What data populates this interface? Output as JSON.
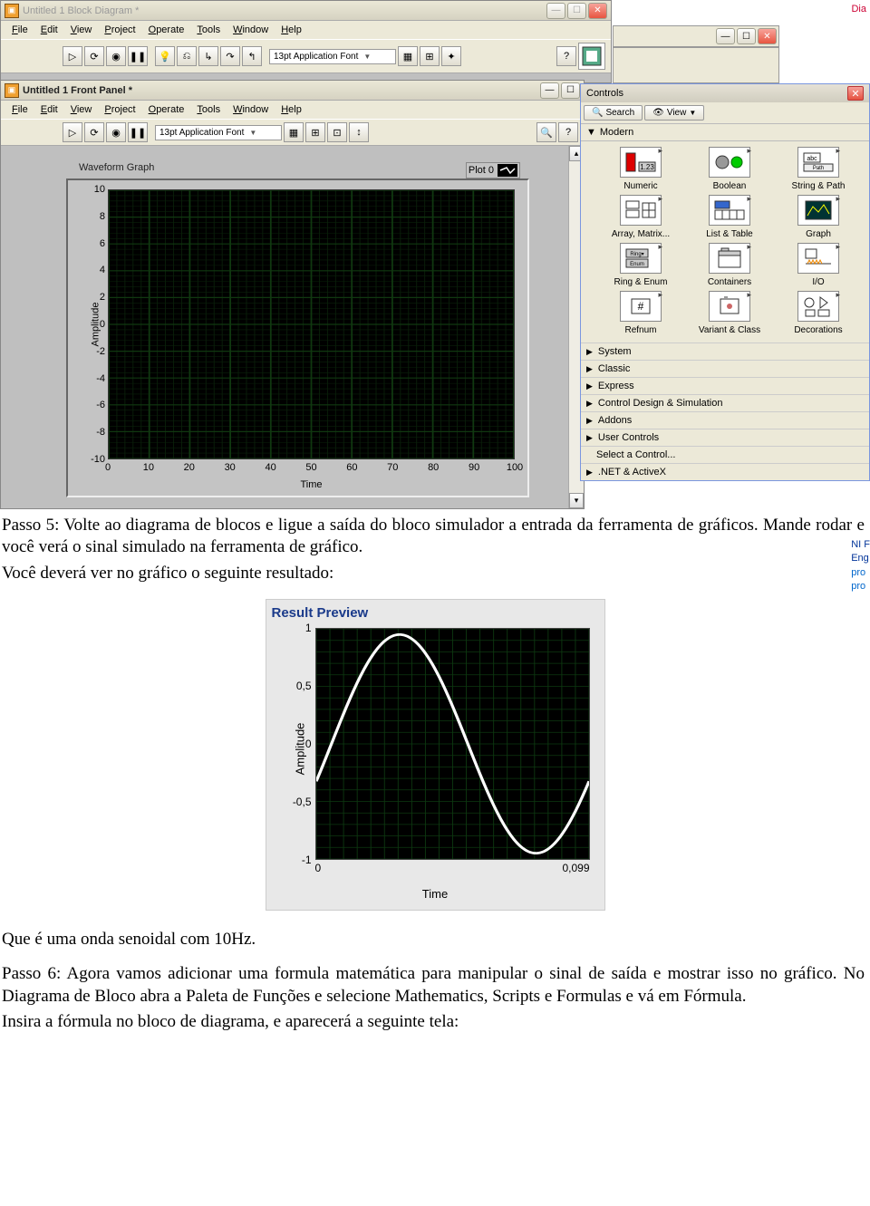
{
  "block_window": {
    "title": "Untitled 1 Block Diagram *",
    "menus": [
      "File",
      "Edit",
      "View",
      "Project",
      "Operate",
      "Tools",
      "Window",
      "Help"
    ],
    "font_label": "13pt Application Font"
  },
  "panel_window": {
    "title": "Untitled 1 Front Panel *",
    "menus": [
      "File",
      "Edit",
      "View",
      "Project",
      "Operate",
      "Tools",
      "Window",
      "Help"
    ],
    "font_label": "13pt Application Font"
  },
  "waveform_graph": {
    "title": "Waveform Graph",
    "legend_label": "Plot 0",
    "xlabel": "Time",
    "ylabel": "Amplitude",
    "xlim": [
      0,
      100
    ],
    "xtick_step": 10,
    "ylim": [
      -10,
      10
    ],
    "ytick_step": 2,
    "xticks": [
      "0",
      "10",
      "20",
      "30",
      "40",
      "50",
      "60",
      "70",
      "80",
      "90",
      "100"
    ],
    "yticks": [
      "10",
      "8",
      "6",
      "4",
      "2",
      "0",
      "-2",
      "-4",
      "-6",
      "-8",
      "-10"
    ],
    "bg": "#000000",
    "grid_major": "#103810",
    "grid_minor": "#0a200a"
  },
  "controls_palette": {
    "title": "Controls",
    "search_label": "Search",
    "view_label": "View",
    "section_header": "Modern",
    "items": [
      {
        "label": "Numeric"
      },
      {
        "label": "Boolean"
      },
      {
        "label": "String & Path"
      },
      {
        "label": "Array, Matrix..."
      },
      {
        "label": "List & Table"
      },
      {
        "label": "Graph"
      },
      {
        "label": "Ring & Enum"
      },
      {
        "label": "Containers"
      },
      {
        "label": "I/O"
      },
      {
        "label": "Refnum"
      },
      {
        "label": "Variant & Class"
      },
      {
        "label": "Decorations"
      }
    ],
    "rows": [
      "System",
      "Classic",
      "Express",
      "Control Design & Simulation",
      "Addons",
      "User Controls",
      "Select a Control...",
      ".NET & ActiveX"
    ]
  },
  "frag_text": {
    "dia": "Dia",
    "nif": "NI F",
    "eng": "Eng",
    "pro1": "pro",
    "pro2": "pro"
  },
  "doc": {
    "p1": "Passo 5: Volte ao diagrama de blocos e ligue a saída do bloco simulador a entrada da ferramenta de gráficos. Mande rodar e você verá o sinal simulado na ferramenta de gráfico.",
    "p2": "Você deverá ver no gráfico o seguinte resultado:",
    "p3": "Que é uma onda senoidal com 10Hz.",
    "p4": "Passo 6: Agora vamos adicionar uma formula matemática para manipular o sinal de saída e mostrar isso no gráfico. No Diagrama de Bloco abra a Paleta de Funções e selecione Mathematics, Scripts e Formulas e vá em Fórmula.",
    "p5": "Insira a fórmula no bloco de diagrama, e aparecerá a seguinte tela:"
  },
  "preview": {
    "title": "Result Preview",
    "xlabel": "Time",
    "ylabel": "Amplitude",
    "yticks": [
      {
        "v": "1",
        "p": 0
      },
      {
        "v": "0,5",
        "p": 25
      },
      {
        "v": "0",
        "p": 50
      },
      {
        "v": "-0,5",
        "p": 75
      },
      {
        "v": "-1",
        "p": 100
      }
    ],
    "xticks": [
      {
        "v": "0",
        "p": 0
      },
      {
        "v": "0,099",
        "p": 100
      }
    ],
    "bg": "#000000",
    "grid": "#0d3810",
    "line": "#ffffff",
    "sine_cycles": 1,
    "sine_phase_deg": -20
  }
}
